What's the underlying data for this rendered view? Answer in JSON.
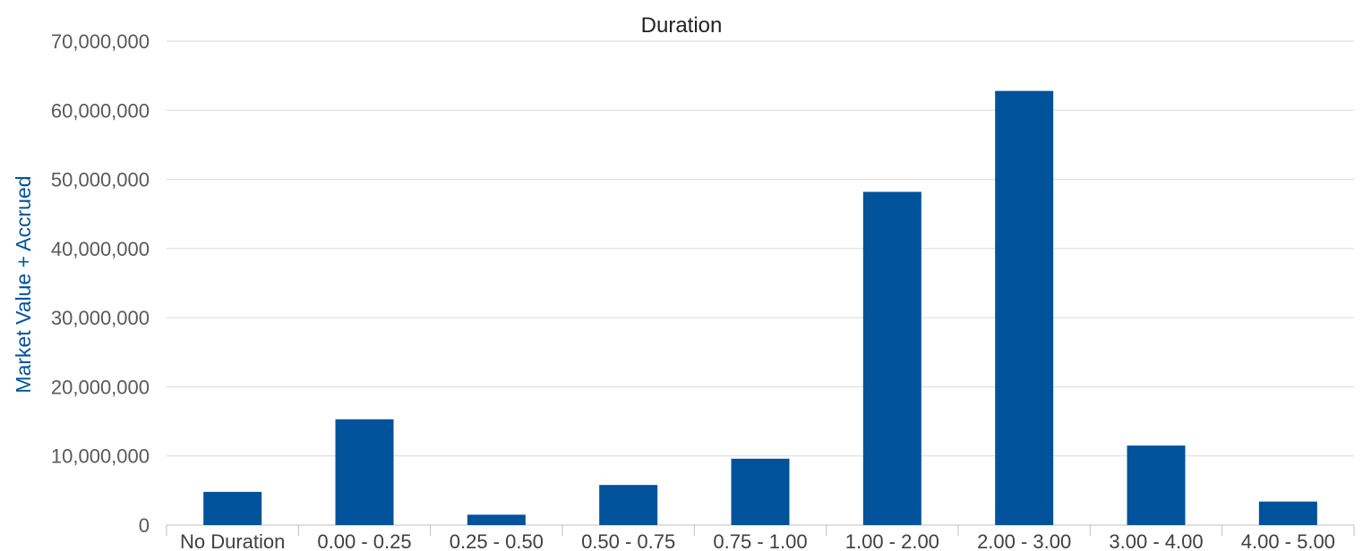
{
  "chart_data": {
    "type": "bar",
    "title": "Duration",
    "xlabel": "",
    "ylabel": "Market Value + Accrued",
    "categories": [
      "No Duration",
      "0.00 - 0.25",
      "0.25 - 0.50",
      "0.50 - 0.75",
      "0.75 - 1.00",
      "1.00 - 2.00",
      "2.00 - 3.00",
      "3.00 - 4.00",
      "4.00 - 5.00"
    ],
    "values": [
      4800000,
      15300000,
      1500000,
      5800000,
      9600000,
      48200000,
      62800000,
      11500000,
      3400000
    ],
    "ylim": [
      0,
      70000000
    ],
    "yticks": [
      0,
      10000000,
      20000000,
      30000000,
      40000000,
      50000000,
      60000000,
      70000000
    ],
    "ytick_labels": [
      "0",
      "10,000,000",
      "20,000,000",
      "30,000,000",
      "40,000,000",
      "50,000,000",
      "60,000,000",
      "70,000,000"
    ],
    "grid": true,
    "legend": "none",
    "bar_color": "#00539b",
    "ylabel_color": "#00539b"
  }
}
